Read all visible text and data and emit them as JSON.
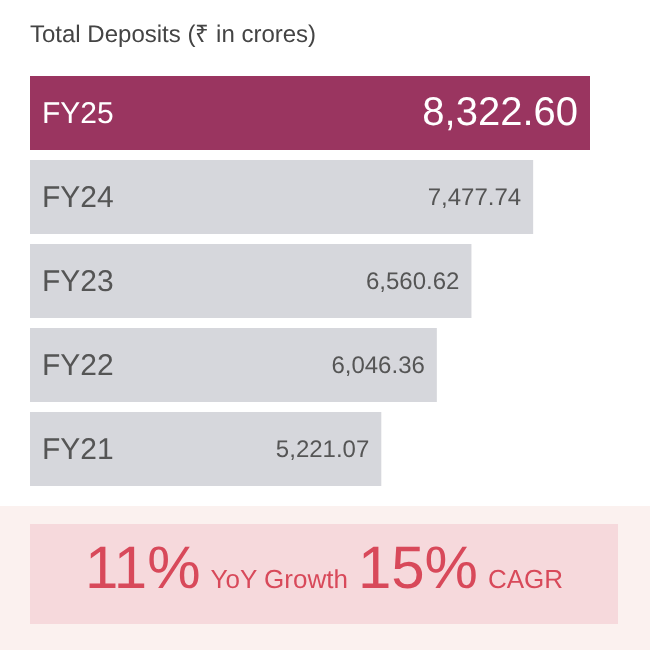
{
  "chart_data": {
    "type": "bar",
    "orientation": "horizontal",
    "title": "Total Deposits (₹ in crores)",
    "categories": [
      "FY25",
      "FY24",
      "FY23",
      "FY22",
      "FY21"
    ],
    "values": [
      8322.6,
      7477.74,
      6560.62,
      6046.36,
      5221.07
    ],
    "value_labels": [
      "8,322.60",
      "7,477.74",
      "6,560.62",
      "6,046.36",
      "5,221.07"
    ],
    "colors": [
      "#9a3560",
      "#d6d7dc",
      "#d6d7dc",
      "#d6d7dc",
      "#d6d7dc"
    ],
    "annotations": [
      "11%",
      "YoY Growth",
      "15%",
      "CAGR"
    ]
  }
}
